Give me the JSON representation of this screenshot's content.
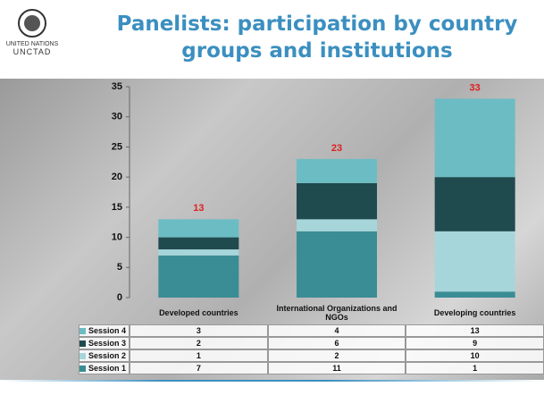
{
  "header": {
    "title": "Panelists: participation by country groups and institutions",
    "logo_line1": "UNITED NATIONS",
    "logo_line2": "UNCTAD"
  },
  "chart_data": {
    "type": "stacked_bar",
    "categories": [
      "Developed countries",
      "International Organizations and NGOs",
      "Developing countries"
    ],
    "series": [
      {
        "name": "Session 1",
        "color": "#3a8d95",
        "values": [
          7,
          11,
          1
        ]
      },
      {
        "name": "Session 2",
        "color": "#a6d6da",
        "values": [
          1,
          2,
          10
        ]
      },
      {
        "name": "Session 3",
        "color": "#1f4a4e",
        "values": [
          2,
          6,
          9
        ]
      },
      {
        "name": "Session 4",
        "color": "#6cbcc4",
        "values": [
          3,
          4,
          13
        ]
      }
    ],
    "total_labels": [
      13,
      23,
      33
    ],
    "total_label_color": "#e02020",
    "ylim": [
      0,
      35
    ],
    "yticks": [
      0,
      5,
      10,
      15,
      20,
      25,
      30,
      35
    ]
  }
}
